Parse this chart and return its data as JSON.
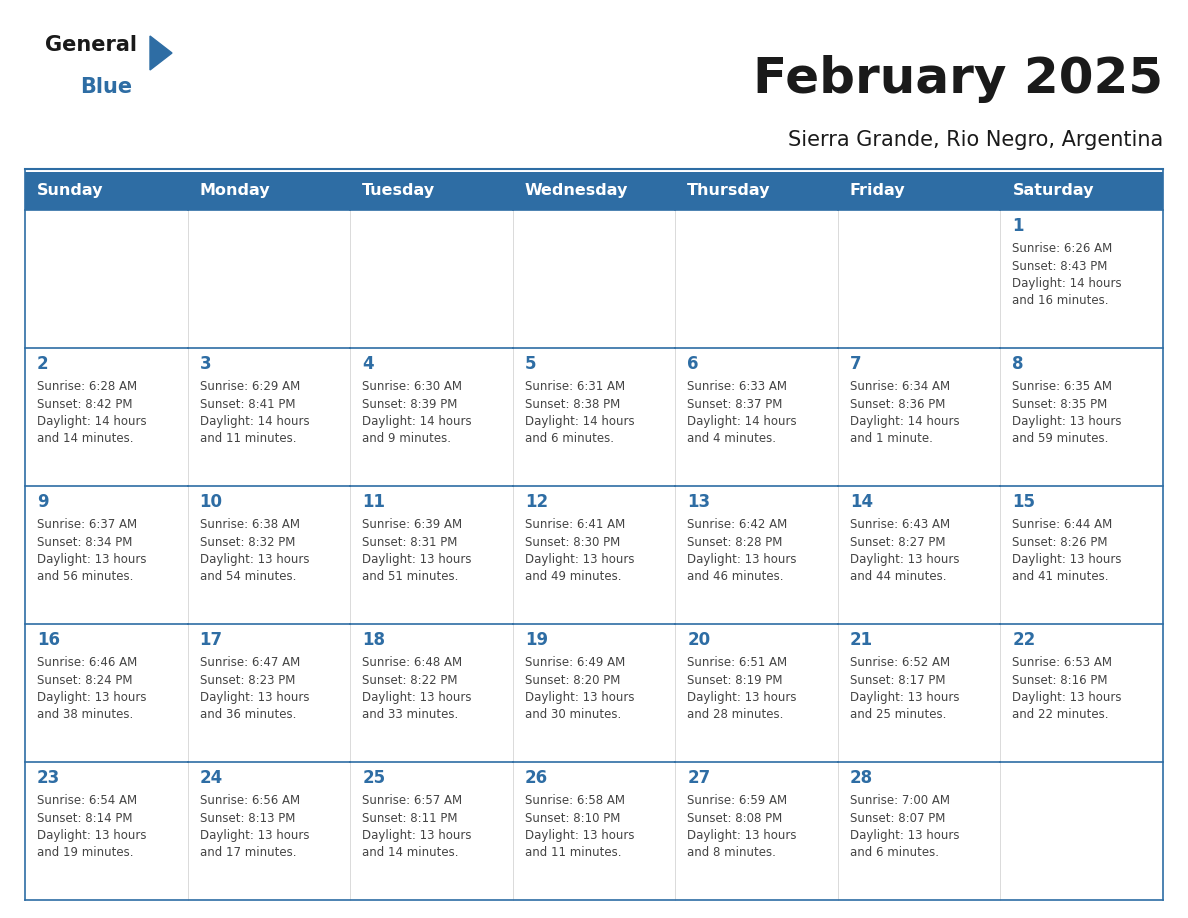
{
  "title": "February 2025",
  "subtitle": "Sierra Grande, Rio Negro, Argentina",
  "header_bg": "#2E6DA4",
  "header_text_color": "#FFFFFF",
  "cell_bg": "#FFFFFF",
  "grid_line_color": "#2E6DA4",
  "day_headers": [
    "Sunday",
    "Monday",
    "Tuesday",
    "Wednesday",
    "Thursday",
    "Friday",
    "Saturday"
  ],
  "title_color": "#1a1a1a",
  "subtitle_color": "#1a1a1a",
  "cell_text_color": "#444444",
  "day_num_color": "#2E6DA4",
  "logo_general_color": "#1a1a1a",
  "logo_blue_color": "#2E6DA4",
  "logo_triangle_color": "#2E6DA4",
  "calendar_data": [
    [
      null,
      null,
      null,
      null,
      null,
      null,
      {
        "day": 1,
        "sunrise": "6:26 AM",
        "sunset": "8:43 PM",
        "daylight": "14 hours",
        "daylight2": "and 16 minutes."
      }
    ],
    [
      {
        "day": 2,
        "sunrise": "6:28 AM",
        "sunset": "8:42 PM",
        "daylight": "14 hours",
        "daylight2": "and 14 minutes."
      },
      {
        "day": 3,
        "sunrise": "6:29 AM",
        "sunset": "8:41 PM",
        "daylight": "14 hours",
        "daylight2": "and 11 minutes."
      },
      {
        "day": 4,
        "sunrise": "6:30 AM",
        "sunset": "8:39 PM",
        "daylight": "14 hours",
        "daylight2": "and 9 minutes."
      },
      {
        "day": 5,
        "sunrise": "6:31 AM",
        "sunset": "8:38 PM",
        "daylight": "14 hours",
        "daylight2": "and 6 minutes."
      },
      {
        "day": 6,
        "sunrise": "6:33 AM",
        "sunset": "8:37 PM",
        "daylight": "14 hours",
        "daylight2": "and 4 minutes."
      },
      {
        "day": 7,
        "sunrise": "6:34 AM",
        "sunset": "8:36 PM",
        "daylight": "14 hours",
        "daylight2": "and 1 minute."
      },
      {
        "day": 8,
        "sunrise": "6:35 AM",
        "sunset": "8:35 PM",
        "daylight": "13 hours",
        "daylight2": "and 59 minutes."
      }
    ],
    [
      {
        "day": 9,
        "sunrise": "6:37 AM",
        "sunset": "8:34 PM",
        "daylight": "13 hours",
        "daylight2": "and 56 minutes."
      },
      {
        "day": 10,
        "sunrise": "6:38 AM",
        "sunset": "8:32 PM",
        "daylight": "13 hours",
        "daylight2": "and 54 minutes."
      },
      {
        "day": 11,
        "sunrise": "6:39 AM",
        "sunset": "8:31 PM",
        "daylight": "13 hours",
        "daylight2": "and 51 minutes."
      },
      {
        "day": 12,
        "sunrise": "6:41 AM",
        "sunset": "8:30 PM",
        "daylight": "13 hours",
        "daylight2": "and 49 minutes."
      },
      {
        "day": 13,
        "sunrise": "6:42 AM",
        "sunset": "8:28 PM",
        "daylight": "13 hours",
        "daylight2": "and 46 minutes."
      },
      {
        "day": 14,
        "sunrise": "6:43 AM",
        "sunset": "8:27 PM",
        "daylight": "13 hours",
        "daylight2": "and 44 minutes."
      },
      {
        "day": 15,
        "sunrise": "6:44 AM",
        "sunset": "8:26 PM",
        "daylight": "13 hours",
        "daylight2": "and 41 minutes."
      }
    ],
    [
      {
        "day": 16,
        "sunrise": "6:46 AM",
        "sunset": "8:24 PM",
        "daylight": "13 hours",
        "daylight2": "and 38 minutes."
      },
      {
        "day": 17,
        "sunrise": "6:47 AM",
        "sunset": "8:23 PM",
        "daylight": "13 hours",
        "daylight2": "and 36 minutes."
      },
      {
        "day": 18,
        "sunrise": "6:48 AM",
        "sunset": "8:22 PM",
        "daylight": "13 hours",
        "daylight2": "and 33 minutes."
      },
      {
        "day": 19,
        "sunrise": "6:49 AM",
        "sunset": "8:20 PM",
        "daylight": "13 hours",
        "daylight2": "and 30 minutes."
      },
      {
        "day": 20,
        "sunrise": "6:51 AM",
        "sunset": "8:19 PM",
        "daylight": "13 hours",
        "daylight2": "and 28 minutes."
      },
      {
        "day": 21,
        "sunrise": "6:52 AM",
        "sunset": "8:17 PM",
        "daylight": "13 hours",
        "daylight2": "and 25 minutes."
      },
      {
        "day": 22,
        "sunrise": "6:53 AM",
        "sunset": "8:16 PM",
        "daylight": "13 hours",
        "daylight2": "and 22 minutes."
      }
    ],
    [
      {
        "day": 23,
        "sunrise": "6:54 AM",
        "sunset": "8:14 PM",
        "daylight": "13 hours",
        "daylight2": "and 19 minutes."
      },
      {
        "day": 24,
        "sunrise": "6:56 AM",
        "sunset": "8:13 PM",
        "daylight": "13 hours",
        "daylight2": "and 17 minutes."
      },
      {
        "day": 25,
        "sunrise": "6:57 AM",
        "sunset": "8:11 PM",
        "daylight": "13 hours",
        "daylight2": "and 14 minutes."
      },
      {
        "day": 26,
        "sunrise": "6:58 AM",
        "sunset": "8:10 PM",
        "daylight": "13 hours",
        "daylight2": "and 11 minutes."
      },
      {
        "day": 27,
        "sunrise": "6:59 AM",
        "sunset": "8:08 PM",
        "daylight": "13 hours",
        "daylight2": "and 8 minutes."
      },
      {
        "day": 28,
        "sunrise": "7:00 AM",
        "sunset": "8:07 PM",
        "daylight": "13 hours",
        "daylight2": "and 6 minutes."
      },
      null
    ]
  ]
}
